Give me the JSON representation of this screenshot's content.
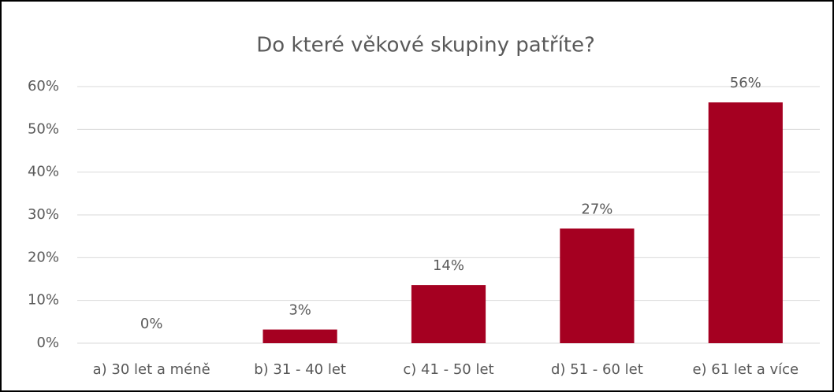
{
  "chart_data": {
    "type": "bar",
    "title": "Do které věkové skupiny patříte?",
    "categories": [
      "a) 30 let a méně",
      "b) 31 - 40 let",
      "c) 41 - 50 let",
      "d) 51 - 60 let",
      "e) 61 let a více"
    ],
    "values": [
      0,
      3.2,
      13.6,
      26.8,
      56.3
    ],
    "value_labels": [
      "0%",
      "3%",
      "14%",
      "27%",
      "56%"
    ],
    "color": "#a50021",
    "ylim": [
      0,
      60
    ],
    "yticks": [
      {
        "value": 0,
        "label": "0%"
      },
      {
        "value": 10,
        "label": "10%"
      },
      {
        "value": 20,
        "label": "20%"
      },
      {
        "value": 30,
        "label": "30%"
      },
      {
        "value": 40,
        "label": "40%"
      },
      {
        "value": 50,
        "label": "50%"
      },
      {
        "value": 60,
        "label": "60%"
      }
    ],
    "grid": true
  }
}
